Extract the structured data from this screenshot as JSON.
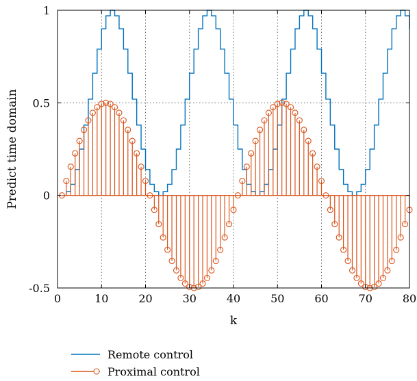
{
  "chart_data": {
    "type": "line",
    "title": "",
    "xlabel": "k",
    "ylabel": "Predict time domain",
    "xlim": [
      0,
      80
    ],
    "ylim": [
      -0.5,
      1
    ],
    "x_ticks": [
      "0",
      "10",
      "20",
      "30",
      "40",
      "50",
      "60",
      "70",
      "80"
    ],
    "y_ticks": [
      "-0.5",
      "0",
      "0.5",
      "1"
    ],
    "grid": "dotted",
    "legend_placement": "bottom",
    "series": [
      {
        "name": "Remote control",
        "style": "stairs",
        "color": "#0072BD",
        "x": [
          1,
          2,
          3,
          4,
          5,
          6,
          7,
          8,
          9,
          10,
          11,
          12,
          13,
          14,
          15,
          16,
          17,
          18,
          19,
          20,
          21,
          22,
          23,
          24,
          25,
          26,
          27,
          28,
          29,
          30,
          31,
          32,
          33,
          34,
          35,
          36,
          37,
          38,
          39,
          40,
          41,
          42,
          43,
          44,
          45,
          46,
          47,
          48,
          49,
          50,
          51,
          52,
          53,
          54,
          55,
          56,
          57,
          58,
          59,
          60,
          61,
          62,
          63,
          64,
          65,
          66,
          67,
          68,
          69,
          70,
          71,
          72,
          73,
          74,
          75,
          76,
          77,
          78,
          79,
          80
        ],
        "values": [
          0,
          0.02,
          0.06,
          0.14,
          0.25,
          0.38,
          0.52,
          0.66,
          0.79,
          0.9,
          0.97,
          1.0,
          0.97,
          0.9,
          0.79,
          0.66,
          0.52,
          0.38,
          0.25,
          0.14,
          0.06,
          0.02,
          0,
          0.02,
          0.06,
          0.14,
          0.25,
          0.38,
          0.52,
          0.66,
          0.79,
          0.9,
          0.97,
          1.0,
          0.97,
          0.9,
          0.79,
          0.66,
          0.52,
          0.38,
          0.25,
          0.14,
          0.06,
          0.02,
          0,
          0.02,
          0.06,
          0.14,
          0.25,
          0.38,
          0.52,
          0.66,
          0.79,
          0.9,
          0.97,
          1.0,
          0.97,
          0.9,
          0.79,
          0.66,
          0.52,
          0.38,
          0.25,
          0.14,
          0.06,
          0.02,
          0,
          0.02,
          0.06,
          0.14,
          0.25,
          0.38,
          0.52,
          0.66,
          0.79,
          0.9,
          0.97,
          1.0,
          0.97,
          0.9
        ]
      },
      {
        "name": "Proximal control",
        "style": "stem",
        "color": "#D95319",
        "x": [
          1,
          2,
          3,
          4,
          5,
          6,
          7,
          8,
          9,
          10,
          11,
          12,
          13,
          14,
          15,
          16,
          17,
          18,
          19,
          20,
          21,
          22,
          23,
          24,
          25,
          26,
          27,
          28,
          29,
          30,
          31,
          32,
          33,
          34,
          35,
          36,
          37,
          38,
          39,
          40,
          41,
          42,
          43,
          44,
          45,
          46,
          47,
          48,
          49,
          50,
          51,
          52,
          53,
          54,
          55,
          56,
          57,
          58,
          59,
          60,
          61,
          62,
          63,
          64,
          65,
          66,
          67,
          68,
          69,
          70,
          71,
          72,
          73,
          74,
          75,
          76,
          77,
          78,
          79,
          80
        ],
        "values": [
          0,
          0.078,
          0.155,
          0.227,
          0.294,
          0.354,
          0.405,
          0.446,
          0.476,
          0.494,
          0.5,
          0.494,
          0.476,
          0.446,
          0.405,
          0.354,
          0.294,
          0.227,
          0.155,
          0.078,
          0,
          -0.078,
          -0.155,
          -0.227,
          -0.294,
          -0.354,
          -0.405,
          -0.446,
          -0.476,
          -0.494,
          -0.5,
          -0.494,
          -0.476,
          -0.446,
          -0.405,
          -0.354,
          -0.294,
          -0.227,
          -0.155,
          -0.078,
          0,
          0.078,
          0.155,
          0.227,
          0.294,
          0.354,
          0.405,
          0.446,
          0.476,
          0.494,
          0.5,
          0.494,
          0.476,
          0.446,
          0.405,
          0.354,
          0.294,
          0.227,
          0.155,
          0.078,
          0,
          -0.078,
          -0.155,
          -0.227,
          -0.294,
          -0.354,
          -0.405,
          -0.446,
          -0.476,
          -0.494,
          -0.5,
          -0.494,
          -0.476,
          -0.446,
          -0.405,
          -0.354,
          -0.294,
          -0.227,
          -0.155,
          -0.078
        ]
      }
    ]
  }
}
